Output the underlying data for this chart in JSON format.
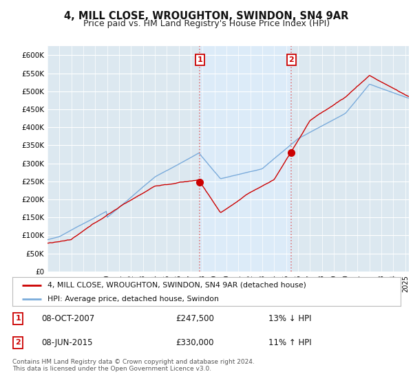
{
  "title": "4, MILL CLOSE, WROUGHTON, SWINDON, SN4 9AR",
  "subtitle": "Price paid vs. HM Land Registry's House Price Index (HPI)",
  "ylabel_ticks": [
    "£0",
    "£50K",
    "£100K",
    "£150K",
    "£200K",
    "£250K",
    "£300K",
    "£350K",
    "£400K",
    "£450K",
    "£500K",
    "£550K",
    "£600K"
  ],
  "ytick_values": [
    0,
    50000,
    100000,
    150000,
    200000,
    250000,
    300000,
    350000,
    400000,
    450000,
    500000,
    550000,
    600000
  ],
  "ylim": [
    0,
    625000
  ],
  "xlim_start": 1995.0,
  "xlim_end": 2025.3,
  "sale1_year": 2007.77,
  "sale1_price": 247500,
  "sale1_label": "1",
  "sale2_year": 2015.44,
  "sale2_price": 330000,
  "sale2_label": "2",
  "property_color": "#cc0000",
  "hpi_color": "#7aabdb",
  "background_color": "#ffffff",
  "plot_bg_color": "#dce8f0",
  "grid_color": "#ffffff",
  "vline_color": "#dd7777",
  "span_color": "#ddeeff",
  "legend_text1": "4, MILL CLOSE, WROUGHTON, SWINDON, SN4 9AR (detached house)",
  "legend_text2": "HPI: Average price, detached house, Swindon",
  "annotation1_date": "08-OCT-2007",
  "annotation1_price": "£247,500",
  "annotation1_change": "13% ↓ HPI",
  "annotation2_date": "08-JUN-2015",
  "annotation2_price": "£330,000",
  "annotation2_change": "11% ↑ HPI",
  "footer": "Contains HM Land Registry data © Crown copyright and database right 2024.\nThis data is licensed under the Open Government Licence v3.0."
}
